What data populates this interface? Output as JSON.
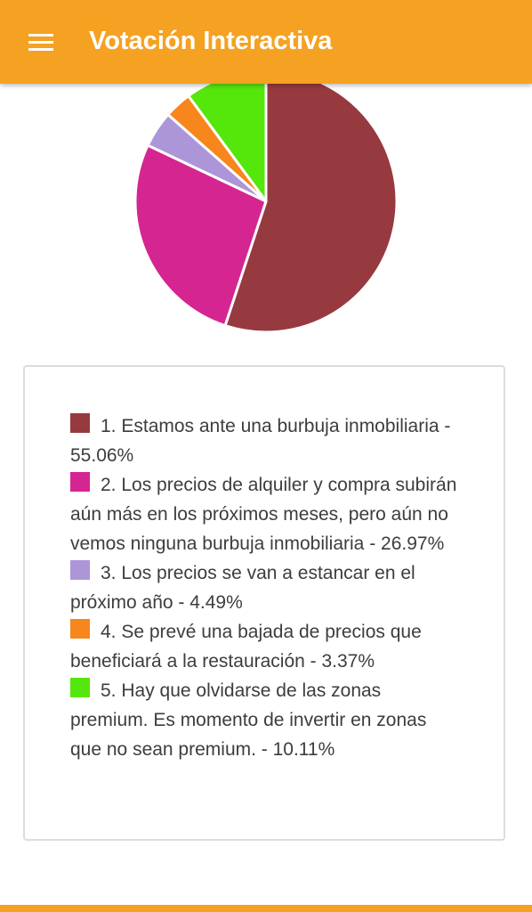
{
  "app_bar": {
    "title": "Votación Interactiva",
    "menu_icon": "hamburger-menu-icon",
    "background_color": "#f5a122"
  },
  "chart_data": {
    "type": "pie",
    "categories": [
      "1. Estamos ante una burbuja inmobiliaria",
      "2. Los precios de alquiler y compra subirán aún más en los próximos meses, pero aún no vemos ninguna burbuja inmobiliaria",
      "3. Los precios se van a estancar en el próximo año",
      "4. Se prevé una bajada de precios que beneficiará a la restauración",
      "5. Hay que olvidarse de las zonas premium. Es momento de invertir en zonas que no sean premium."
    ],
    "values": [
      55.06,
      26.97,
      4.49,
      3.37,
      10.11
    ],
    "colors": [
      "#963a40",
      "#d52590",
      "#ac96d8",
      "#f7861c",
      "#55e60c"
    ],
    "start_angle": "top, clockwise",
    "legend_position": "below"
  },
  "legend": {
    "items": [
      {
        "text": "1. Estamos ante una burbuja inmobiliaria - 55.06%",
        "color": "#963a40"
      },
      {
        "text": "2. Los precios de alquiler y compra subirán aún más en los próximos meses, pero aún no vemos ninguna burbuja inmobiliaria - 26.97%",
        "color": "#d52590"
      },
      {
        "text": "3. Los precios se van a estancar en el próximo año - 4.49%",
        "color": "#ac96d8"
      },
      {
        "text": "4. Se prevé una bajada de precios que beneficiará a la restauración - 3.37%",
        "color": "#f7861c"
      },
      {
        "text": "5. Hay que olvidarse de las zonas premium. Es momento de invertir en zonas que no sean premium. - 10.11%",
        "color": "#55e60c"
      }
    ]
  }
}
